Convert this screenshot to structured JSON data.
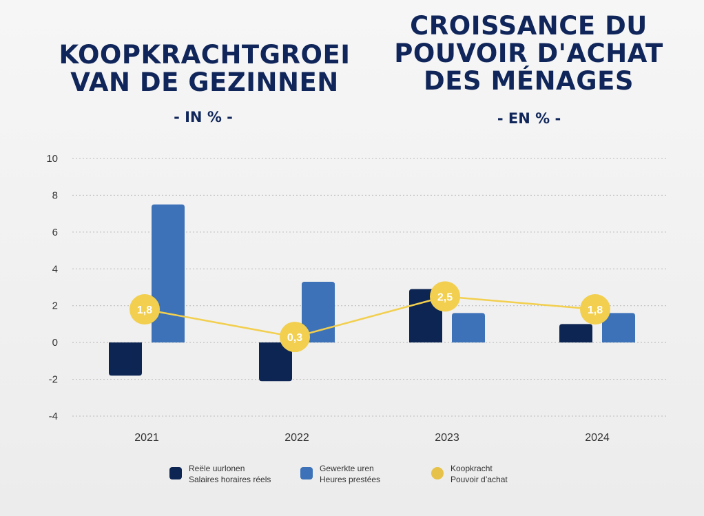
{
  "titles": {
    "nl": [
      "KOOPKRACHTGROEI",
      "VAN DE GEZINNEN"
    ],
    "fr": [
      "CROISSANCE DU",
      "POUVOIR D'ACHAT",
      "DES MÉNAGES"
    ],
    "unit_nl": "- IN % -",
    "unit_fr": "- EN % -"
  },
  "colors": {
    "dark_navy": "#0d2552",
    "blue": "#3d72b8",
    "yellow": "#f2cf4e",
    "title": "#10265a"
  },
  "legend": [
    {
      "nl": "Reële uurlonen",
      "fr": "Salaires horaires réels",
      "color": "#0d2552"
    },
    {
      "nl": "Gewerkte uren",
      "fr": "Heures prestées",
      "color": "#3d72b8"
    },
    {
      "nl": "Koopkracht",
      "fr": "Pouvoir d’achat",
      "color": "#e6c24a"
    }
  ],
  "chart_data": {
    "type": "bar",
    "categories": [
      "2021",
      "2022",
      "2023",
      "2024"
    ],
    "series": [
      {
        "name": "Reële uurlonen / Salaires horaires réels",
        "kind": "bar",
        "color": "#0d2552",
        "values": [
          -1.8,
          -2.1,
          2.9,
          1.0
        ]
      },
      {
        "name": "Gewerkte uren / Heures prestées",
        "kind": "bar",
        "color": "#3d72b8",
        "values": [
          7.5,
          3.3,
          1.6,
          1.6
        ]
      },
      {
        "name": "Koopkracht / Pouvoir d’achat",
        "kind": "line",
        "color": "#f2cf4e",
        "values": [
          1.8,
          0.3,
          2.5,
          1.8
        ],
        "labels": [
          "1,8",
          "0,3",
          "2,5",
          "1,8"
        ]
      }
    ],
    "ylim": [
      -4,
      10
    ],
    "yticks": [
      -4,
      -2,
      0,
      2,
      4,
      6,
      8,
      10
    ],
    "ytick_labels": [
      "-4",
      "-2",
      "0",
      "2",
      "4",
      "6",
      "8",
      "10"
    ],
    "grid": true,
    "legend_position": "bottom"
  }
}
